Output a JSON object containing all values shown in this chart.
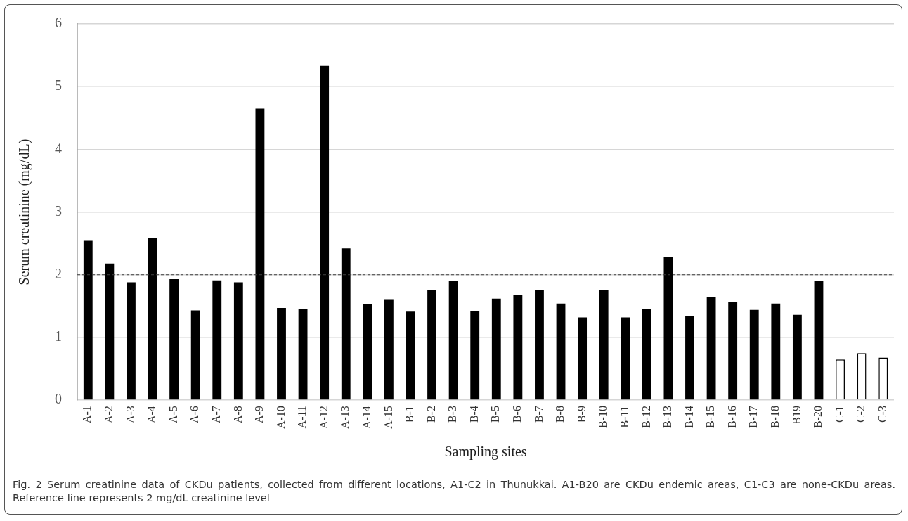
{
  "chart_data": {
    "type": "bar",
    "xlabel": "Sampling sites",
    "ylabel": "Serum creatinine (mg/dL)",
    "categories": [
      "A-1",
      "A-2",
      "A-3",
      "A-4",
      "A-5",
      "A-6",
      "A-7",
      "A-8",
      "A-9",
      "A-10",
      "A-11",
      "A-12",
      "A-13",
      "A-14",
      "A-15",
      "B-1",
      "B-2",
      "B-3",
      "B-4",
      "B-5",
      "B-6",
      "B-7",
      "B-8",
      "B-9",
      "B-10",
      "B-11",
      "B-12",
      "B-13",
      "B-14",
      "B-15",
      "B-16",
      "B-17",
      "B-18",
      "B19",
      "B-20",
      "C-1",
      "C-2",
      "C-3"
    ],
    "values": [
      2.54,
      2.18,
      1.88,
      2.59,
      1.93,
      1.43,
      1.91,
      1.88,
      4.65,
      1.47,
      1.46,
      5.33,
      2.42,
      1.53,
      1.61,
      1.41,
      1.75,
      1.9,
      1.42,
      1.62,
      1.68,
      1.76,
      1.54,
      1.32,
      1.76,
      1.32,
      1.46,
      2.28,
      1.34,
      1.65,
      1.57,
      1.44,
      1.54,
      1.36,
      1.9,
      0.65,
      0.75,
      0.68
    ],
    "colors": [
      "#000000",
      "#000000",
      "#000000",
      "#000000",
      "#000000",
      "#000000",
      "#000000",
      "#000000",
      "#000000",
      "#000000",
      "#000000",
      "#000000",
      "#000000",
      "#000000",
      "#000000",
      "#000000",
      "#000000",
      "#000000",
      "#000000",
      "#000000",
      "#000000",
      "#000000",
      "#000000",
      "#000000",
      "#000000",
      "#000000",
      "#000000",
      "#000000",
      "#000000",
      "#000000",
      "#000000",
      "#000000",
      "#000000",
      "#000000",
      "#000000",
      "#ffffff",
      "#ffffff",
      "#ffffff"
    ],
    "ylim": [
      0,
      6
    ],
    "yticks": [
      0,
      1,
      2,
      3,
      4,
      5,
      6
    ],
    "grid": "y",
    "legend": false,
    "ref_lines": [
      {
        "axis": "y",
        "value": 2,
        "color": "#404040",
        "line_style": "dashed"
      }
    ],
    "annotations": [
      "Fig. 2 Serum creatinine data of CKDu patients, collected from different locations, A1-C2 in Thunukkai. A1-B20 are CKDu endemic areas, C1-C3 are none-CKDu areas. Reference line represents 2 mg/dL creatinine level"
    ]
  }
}
